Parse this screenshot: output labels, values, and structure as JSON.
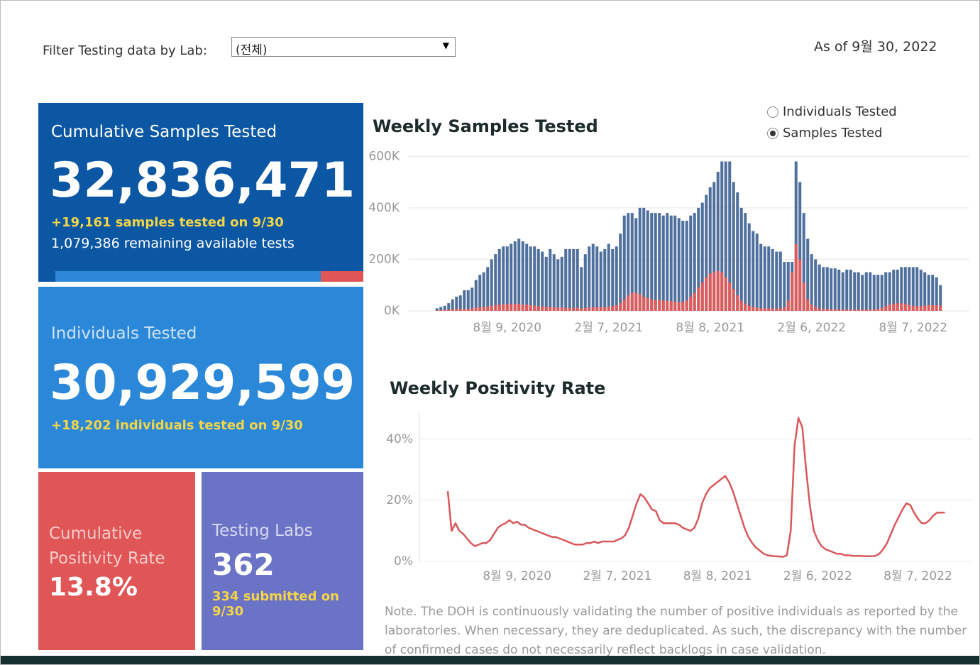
{
  "filter": {
    "label": "Filter Testing data by Lab:",
    "selected": "(전체)"
  },
  "as_of": "As of 9월 30, 2022",
  "toggle": {
    "options": [
      "Individuals Tested",
      "Samples Tested"
    ],
    "selected": 1
  },
  "kpis": {
    "samples": {
      "title": "Cumulative Samples Tested",
      "value": "32,836,471",
      "delta": "+19,161 samples tested on 9/30",
      "remaining": "1,079,386 remaining available tests"
    },
    "individuals": {
      "title": "Individuals Tested",
      "value": "30,929,599",
      "delta": "+18,202  individuals  tested on 9/30"
    },
    "positivity": {
      "title": "Cumulative Positivity Rate",
      "value": "13.8%"
    },
    "labs": {
      "title": "Testing Labs",
      "value": "362",
      "delta": "334 submitted on 9/30"
    }
  },
  "note": "Note. The DOH is continuously validating the number of positive individuals as reported by the laboratories. When necessary, they are deduplicated. As such, the discrepancy with the number of confirmed cases do not necessarily reflect backlogs in case validation.",
  "chart_data": [
    {
      "type": "bar",
      "title": "Weekly Samples Tested",
      "categories": [
        null,
        null,
        null,
        null,
        null,
        null,
        null,
        null,
        null,
        null,
        null,
        null,
        null,
        null,
        null,
        null,
        null,
        null,
        "8월 9, 2020",
        null,
        null,
        null,
        null,
        null,
        null,
        null,
        null,
        null,
        null,
        null,
        null,
        null,
        null,
        null,
        null,
        null,
        null,
        null,
        null,
        null,
        null,
        null,
        null,
        null,
        "2월 7, 2021",
        null,
        null,
        null,
        null,
        null,
        null,
        null,
        null,
        null,
        null,
        null,
        null,
        null,
        null,
        null,
        null,
        null,
        null,
        null,
        null,
        null,
        null,
        null,
        null,
        null,
        "8월 8, 2021",
        null,
        null,
        null,
        null,
        null,
        null,
        null,
        null,
        null,
        null,
        null,
        null,
        null,
        null,
        null,
        null,
        null,
        null,
        null,
        null,
        null,
        null,
        null,
        null,
        null,
        "2월 6, 2022",
        null,
        null,
        null,
        null,
        null,
        null,
        null,
        null,
        null,
        null,
        null,
        null,
        null,
        null,
        null,
        null,
        null,
        null,
        null,
        null,
        null,
        null,
        null,
        null,
        null,
        "8월 7, 2022",
        null,
        null,
        null,
        null,
        null,
        null,
        null
      ],
      "series": [
        {
          "color": "#4f6f9c",
          "values": [
            10000,
            15000,
            20000,
            30000,
            45000,
            55000,
            60000,
            80000,
            80000,
            90000,
            120000,
            140000,
            150000,
            170000,
            200000,
            220000,
            240000,
            250000,
            250000,
            260000,
            270000,
            280000,
            270000,
            260000,
            250000,
            250000,
            240000,
            230000,
            210000,
            240000,
            220000,
            200000,
            210000,
            240000,
            240000,
            240000,
            240000,
            170000,
            220000,
            250000,
            260000,
            250000,
            230000,
            240000,
            260000,
            240000,
            250000,
            300000,
            370000,
            380000,
            380000,
            360000,
            400000,
            400000,
            390000,
            380000,
            380000,
            380000,
            370000,
            380000,
            370000,
            370000,
            360000,
            350000,
            350000,
            370000,
            380000,
            400000,
            420000,
            450000,
            480000,
            500000,
            540000,
            580000,
            580000,
            580000,
            500000,
            460000,
            400000,
            380000,
            340000,
            310000,
            300000,
            260000,
            250000,
            250000,
            240000,
            230000,
            230000,
            190000,
            190000,
            190000,
            580000,
            500000,
            380000,
            280000,
            220000,
            200000,
            180000,
            170000,
            170000,
            165000,
            165000,
            160000,
            150000,
            160000,
            160000,
            150000,
            150000,
            140000,
            150000,
            150000,
            140000,
            140000,
            140000,
            150000,
            150000,
            160000,
            160000,
            170000,
            170000,
            170000,
            170000,
            170000,
            160000,
            150000,
            140000,
            140000,
            130000,
            100000
          ]
        },
        {
          "color": "#e05a5a",
          "values": [
            2000,
            3000,
            4000,
            5000,
            6000,
            7000,
            7000,
            8000,
            8000,
            10000,
            12000,
            14000,
            15000,
            18000,
            20000,
            22000,
            25000,
            26000,
            27000,
            27000,
            27000,
            27000,
            25000,
            24000,
            22000,
            20000,
            18000,
            17000,
            15000,
            15000,
            14000,
            13000,
            13000,
            12000,
            12000,
            12000,
            12000,
            10000,
            12000,
            13000,
            14000,
            14000,
            14000,
            14000,
            16000,
            18000,
            22000,
            30000,
            45000,
            60000,
            70000,
            70000,
            65000,
            55000,
            50000,
            45000,
            42000,
            42000,
            40000,
            40000,
            38000,
            36000,
            34000,
            34000,
            40000,
            55000,
            70000,
            90000,
            110000,
            130000,
            145000,
            150000,
            155000,
            150000,
            130000,
            110000,
            85000,
            60000,
            40000,
            28000,
            20000,
            15000,
            12000,
            10000,
            10000,
            10000,
            9000,
            9000,
            10000,
            14000,
            40000,
            150000,
            260000,
            200000,
            110000,
            45000,
            25000,
            15000,
            10000,
            8000,
            7000,
            6000,
            6000,
            5000,
            5000,
            5000,
            5000,
            5000,
            5000,
            5000,
            5000,
            5000,
            6000,
            8000,
            12000,
            18000,
            25000,
            28000,
            30000,
            30000,
            28000,
            22000,
            20000,
            18000,
            18000,
            20000,
            22000,
            22000,
            22000,
            20000
          ]
        }
      ],
      "ylim": [
        0,
        620000
      ],
      "yticks": [
        {
          "value": 0,
          "label": "0K"
        },
        {
          "value": 200000,
          "label": "200K"
        },
        {
          "value": 400000,
          "label": "400K"
        },
        {
          "value": 600000,
          "label": "600K"
        }
      ],
      "grid": true
    },
    {
      "type": "line",
      "title": "Weekly Positivity Rate",
      "color": "#d9575a",
      "categories": [
        null,
        null,
        null,
        null,
        null,
        null,
        null,
        null,
        null,
        null,
        null,
        null,
        null,
        null,
        null,
        null,
        null,
        null,
        "8월 9, 2020",
        null,
        null,
        null,
        null,
        null,
        null,
        null,
        null,
        null,
        null,
        null,
        null,
        null,
        null,
        null,
        null,
        null,
        null,
        null,
        null,
        null,
        null,
        null,
        null,
        null,
        "2월 7, 2021",
        null,
        null,
        null,
        null,
        null,
        null,
        null,
        null,
        null,
        null,
        null,
        null,
        null,
        null,
        null,
        null,
        null,
        null,
        null,
        null,
        null,
        null,
        null,
        null,
        null,
        "8월 8, 2021",
        null,
        null,
        null,
        null,
        null,
        null,
        null,
        null,
        null,
        null,
        null,
        null,
        null,
        null,
        null,
        null,
        null,
        null,
        null,
        null,
        null,
        null,
        null,
        null,
        null,
        "2월 6, 2022",
        null,
        null,
        null,
        null,
        null,
        null,
        null,
        null,
        null,
        null,
        null,
        null,
        null,
        null,
        null,
        null,
        null,
        null,
        null,
        null,
        null,
        null,
        null,
        null,
        null,
        "8월 7, 2022",
        null,
        null,
        null,
        null,
        null,
        null,
        null
      ],
      "values": [
        23,
        10,
        12.5,
        10,
        9,
        7.5,
        6,
        5,
        5.5,
        6,
        6,
        7,
        9,
        11,
        12,
        12.5,
        13.5,
        12.5,
        13,
        12,
        12,
        11,
        10.5,
        10,
        9.5,
        9,
        8.5,
        8,
        8,
        7.5,
        7,
        6.5,
        6,
        5.5,
        5.5,
        5.5,
        6,
        6,
        6.5,
        6,
        6.5,
        6.5,
        6.5,
        6.5,
        7,
        7.5,
        8.5,
        11,
        15,
        19,
        22,
        21,
        19,
        17,
        16.5,
        13.5,
        12.5,
        12.5,
        12.5,
        12.5,
        12,
        11,
        10.5,
        10,
        11,
        14,
        19,
        22,
        24,
        25,
        26,
        27,
        28,
        26,
        23,
        19,
        15,
        11,
        8,
        6,
        4.5,
        3.5,
        2.5,
        2,
        1.8,
        1.7,
        1.6,
        1.5,
        2,
        10,
        38,
        47,
        44,
        30,
        18,
        10,
        7,
        5,
        4,
        3.5,
        3,
        2.5,
        2.5,
        2,
        2,
        1.8,
        1.8,
        1.8,
        1.7,
        1.7,
        1.7,
        1.8,
        2.5,
        4,
        6,
        9,
        12,
        14.5,
        17,
        19,
        18.5,
        16,
        14,
        12.5,
        12.5,
        13.5,
        15,
        16,
        16,
        16
      ],
      "ylim": [
        0,
        50
      ],
      "yticks": [
        {
          "value": 0,
          "label": "0%"
        },
        {
          "value": 20,
          "label": "20%"
        },
        {
          "value": 40,
          "label": "40%"
        }
      ],
      "grid": true
    }
  ]
}
